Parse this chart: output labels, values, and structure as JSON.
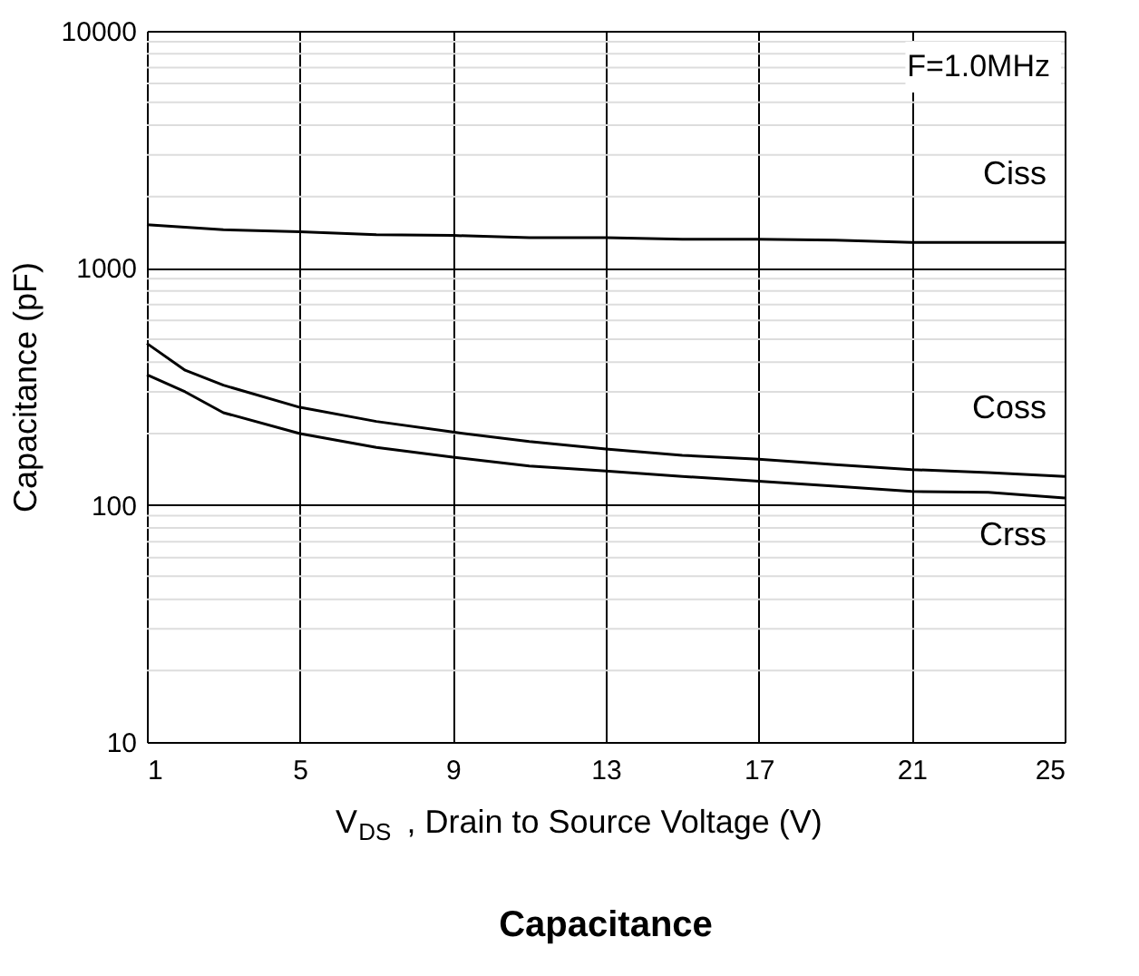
{
  "chart_data": {
    "type": "line",
    "title": "Capacitance",
    "xlabel": "V$_{DS}$ , Drain to Source Voltage (V)",
    "ylabel": "Capacitance (pF)",
    "annotations": [
      "F=1.0MHz"
    ],
    "series": [
      {
        "name": "Ciss",
        "color": "#000000",
        "x": [
          1,
          3,
          5,
          7,
          9,
          11,
          13,
          15,
          17,
          19,
          21,
          23,
          25
        ],
        "values": [
          1520,
          1450,
          1420,
          1380,
          1370,
          1340,
          1340,
          1320,
          1320,
          1310,
          1280,
          1280,
          1280
        ]
      },
      {
        "name": "Coss",
        "color": "#000000",
        "x": [
          1,
          2,
          3,
          5,
          7,
          9,
          11,
          13,
          15,
          17,
          19,
          21,
          23,
          25
        ],
        "values": [
          480,
          370,
          320,
          258,
          225,
          203,
          185,
          172,
          162,
          156,
          148,
          141,
          137,
          132
        ]
      },
      {
        "name": "Crss",
        "color": "#000000",
        "x": [
          1,
          2,
          3,
          5,
          7,
          9,
          11,
          13,
          15,
          17,
          19,
          21,
          23,
          25
        ],
        "values": [
          354,
          300,
          245,
          200,
          175,
          159,
          146,
          139,
          132,
          126,
          120,
          114,
          113,
          107
        ]
      }
    ],
    "xlim": [
      1,
      25
    ],
    "xticks": [
      1,
      5,
      9,
      13,
      17,
      21,
      25
    ],
    "ylim": [
      10,
      10000
    ],
    "yticks": [
      10,
      100,
      1000,
      10000
    ],
    "log": "y",
    "grid": true,
    "legend": false,
    "marker": "none",
    "line_style": "solid"
  }
}
